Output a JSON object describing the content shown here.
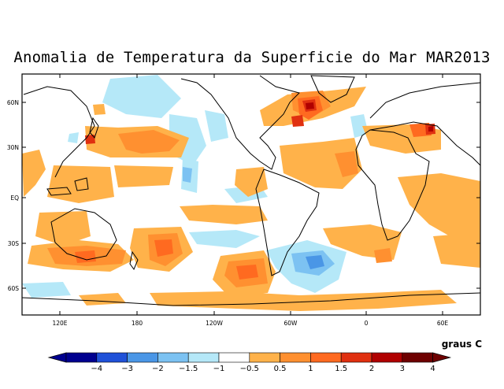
{
  "title": "Anomalia de Temperatura da Superficie do Mar MAR2013",
  "map": {
    "lat_labels": [
      "60N",
      "30N",
      "EQ",
      "30S",
      "60S"
    ],
    "lon_labels": [
      "120E",
      "180",
      "120W",
      "60W",
      "0",
      "60E"
    ]
  },
  "legend": {
    "unit": "graus C",
    "ticks": [
      "−4",
      "−3",
      "−2",
      "−1.5",
      "−1",
      "−0.5",
      "0.5",
      "1",
      "1.5",
      "2",
      "3",
      "4"
    ],
    "colors": [
      "#00008f",
      "#1f51d8",
      "#4a96e6",
      "#7cc2f2",
      "#b5e8f8",
      "#ffffff",
      "#ffb24a",
      "#ff9030",
      "#ff6a20",
      "#e03010",
      "#b00000",
      "#6e0000"
    ]
  }
}
